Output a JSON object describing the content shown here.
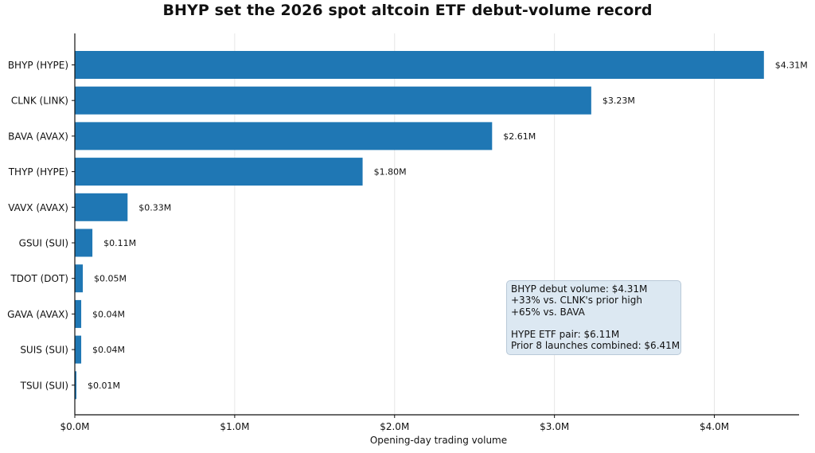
{
  "chart_data": {
    "type": "bar",
    "orientation": "horizontal",
    "title": "BHYP set the 2026 spot altcoin ETF debut-volume record",
    "xlabel": "Opening-day trading volume",
    "ylabel": "",
    "categories": [
      "BHYP (HYPE)",
      "CLNK (LINK)",
      "BAVA (AVAX)",
      "THYP (HYPE)",
      "VAVX (AVAX)",
      "GSUI (SUI)",
      "TDOT (DOT)",
      "GAVA (AVAX)",
      "SUIS (SUI)",
      "TSUI (SUI)"
    ],
    "values": [
      4.31,
      3.23,
      2.61,
      1.8,
      0.33,
      0.11,
      0.05,
      0.04,
      0.04,
      0.01
    ],
    "value_labels": [
      "$4.31M",
      "$3.23M",
      "$2.61M",
      "$1.80M",
      "$0.33M",
      "$0.11M",
      "$0.05M",
      "$0.04M",
      "$0.04M",
      "$0.01M"
    ],
    "units": "$M",
    "xlim": [
      0,
      4.53
    ],
    "x_ticks": [
      0,
      1,
      2,
      3,
      4
    ],
    "x_tick_labels": [
      "$0.0M",
      "$1.0M",
      "$2.0M",
      "$3.0M",
      "$4.0M"
    ],
    "grid": "vertical",
    "bar_color": "#1f77b4",
    "annotation": {
      "lines": [
        "BHYP debut volume: $4.31M",
        "+33% vs. CLNK's prior high",
        "+65% vs. BAVA",
        "",
        "HYPE ETF pair: $6.11M",
        "Prior 8 launches combined: $6.41M"
      ]
    }
  }
}
